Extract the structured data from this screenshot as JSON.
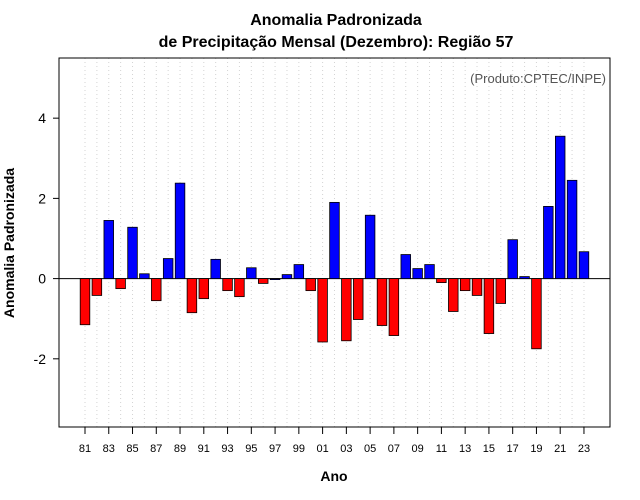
{
  "chart_data": {
    "type": "bar",
    "title_line1": "Anomalia Padronizada",
    "title_line2": "de Precipitação Mensal (Dezembro): Região 57",
    "xlabel": "Ano",
    "ylabel": "Anomalia Padronizada",
    "credit": "(Produto:CPTEC/INPE)",
    "ylim": [
      -3.7,
      5.5
    ],
    "yticks": [
      "-2",
      "0",
      "2",
      "4"
    ],
    "ytick_values": [
      -2,
      0,
      2,
      4
    ],
    "categories": [
      "81",
      "82",
      "83",
      "84",
      "85",
      "86",
      "87",
      "88",
      "89",
      "90",
      "91",
      "92",
      "93",
      "94",
      "95",
      "96",
      "97",
      "98",
      "99",
      "00",
      "01",
      "02",
      "03",
      "04",
      "05",
      "06",
      "07",
      "08",
      "09",
      "10",
      "11",
      "12",
      "13",
      "14",
      "15",
      "16",
      "17",
      "18",
      "19",
      "20",
      "21",
      "22",
      "23"
    ],
    "xtick_labels": [
      "81",
      "83",
      "85",
      "87",
      "89",
      "91",
      "93",
      "95",
      "97",
      "99",
      "01",
      "03",
      "05",
      "07",
      "09",
      "11",
      "13",
      "15",
      "17",
      "19",
      "21",
      "23"
    ],
    "values": [
      -1.15,
      -0.42,
      1.45,
      -0.25,
      1.28,
      0.12,
      -0.55,
      0.5,
      2.38,
      -0.85,
      -0.5,
      0.48,
      -0.3,
      -0.45,
      0.27,
      -0.12,
      0.0,
      0.1,
      0.35,
      -0.3,
      -1.58,
      1.9,
      -1.55,
      -1.02,
      1.58,
      -1.17,
      -1.42,
      0.6,
      0.25,
      0.35,
      -0.1,
      -0.82,
      -0.3,
      -0.42,
      -1.37,
      -0.62,
      0.97,
      0.05,
      -1.75,
      1.8,
      3.55,
      2.45,
      0.67
    ],
    "positive_color": "#0000ff",
    "negative_color": "#ff0000",
    "grid": true
  }
}
